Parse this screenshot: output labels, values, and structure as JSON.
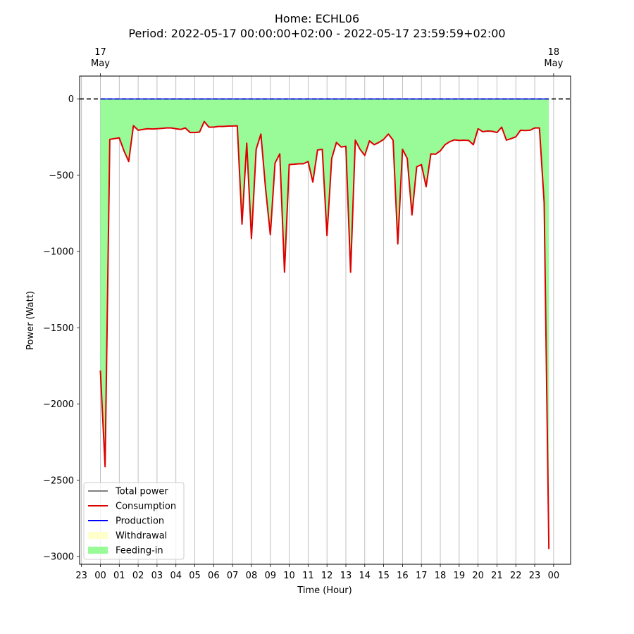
{
  "chart_data": {
    "type": "line",
    "title": "Home: ECHL06",
    "subtitle": "Period: 2022-05-17 00:00:00+02:00 - 2022-05-17 23:59:59+02:00",
    "xlabel": "Time (Hour)",
    "ylabel": "Power (Watt)",
    "ylim": [
      -3050,
      150
    ],
    "yticks": [
      0,
      -500,
      -1000,
      -1500,
      -2000,
      -2500,
      -3000
    ],
    "yticklabels": [
      "0",
      "−500",
      "−1000",
      "−1500",
      "−2000",
      "−2500",
      "−3000"
    ],
    "xlim": [
      -1.1,
      24.9
    ],
    "xticks": [
      -1,
      0,
      1,
      2,
      3,
      4,
      5,
      6,
      7,
      8,
      9,
      10,
      11,
      12,
      13,
      14,
      15,
      16,
      17,
      18,
      19,
      20,
      21,
      22,
      23,
      24
    ],
    "xticklabels": [
      "23",
      "00",
      "01",
      "02",
      "03",
      "04",
      "05",
      "06",
      "07",
      "08",
      "09",
      "10",
      "11",
      "12",
      "13",
      "14",
      "15",
      "16",
      "17",
      "18",
      "19",
      "20",
      "21",
      "22",
      "23",
      "00"
    ],
    "top_ticks": [
      {
        "x": 0,
        "day": "17",
        "month": "May"
      },
      {
        "x": 24,
        "day": "18",
        "month": "May"
      }
    ],
    "grid": "vertical",
    "legend": "lower-left",
    "zero_line": true,
    "series": [
      {
        "name": "Consumption",
        "color": "#dd0000",
        "x": [
          0,
          0.25,
          0.5,
          0.75,
          1,
          1.25,
          1.5,
          1.75,
          2,
          2.25,
          2.5,
          2.75,
          3,
          3.25,
          3.5,
          3.75,
          4,
          4.25,
          4.5,
          4.75,
          5,
          5.25,
          5.5,
          5.75,
          6,
          6.25,
          6.5,
          6.75,
          7,
          7.25,
          7.5,
          7.75,
          8,
          8.25,
          8.5,
          8.75,
          9,
          9.25,
          9.5,
          9.75,
          10,
          10.25,
          10.5,
          10.75,
          11,
          11.25,
          11.5,
          11.75,
          12,
          12.25,
          12.5,
          12.75,
          13,
          13.25,
          13.5,
          13.75,
          14,
          14.25,
          14.5,
          14.75,
          15,
          15.25,
          15.5,
          15.75,
          16,
          16.25,
          16.5,
          16.75,
          17,
          17.25,
          17.5,
          17.75,
          18,
          18.25,
          18.5,
          18.75,
          19,
          19.25,
          19.5,
          19.75,
          20,
          20.25,
          20.5,
          20.75,
          21,
          21.25,
          21.5,
          21.75,
          22,
          22.25,
          22.5,
          22.75,
          23,
          23.25,
          23.5,
          23.75
        ],
        "values": [
          -1780,
          -2410,
          -265,
          -260,
          -255,
          -340,
          -410,
          -175,
          -205,
          -200,
          -195,
          -197,
          -195,
          -193,
          -190,
          -190,
          -195,
          -200,
          -190,
          -220,
          -220,
          -217,
          -148,
          -185,
          -185,
          -180,
          -180,
          -178,
          -177,
          -176,
          -820,
          -290,
          -915,
          -330,
          -230,
          -590,
          -890,
          -420,
          -360,
          -1135,
          -430,
          -428,
          -425,
          -425,
          -410,
          -545,
          -335,
          -330,
          -895,
          -390,
          -285,
          -315,
          -310,
          -1135,
          -270,
          -330,
          -370,
          -275,
          -300,
          -285,
          -265,
          -230,
          -270,
          -950,
          -330,
          -390,
          -760,
          -445,
          -430,
          -575,
          -360,
          -362,
          -340,
          -300,
          -280,
          -268,
          -272,
          -270,
          -272,
          -300,
          -195,
          -215,
          -210,
          -212,
          -220,
          -185,
          -270,
          -260,
          -248,
          -205,
          -207,
          -205,
          -190,
          -190,
          -680,
          -2950
        ]
      },
      {
        "name": "Total power",
        "color": "#808080"
      },
      {
        "name": "Production",
        "color": "#0000ff",
        "x": [
          0,
          23.75
        ],
        "values": [
          0,
          0
        ]
      },
      {
        "name": "Withdrawal",
        "color": "#ffffcc"
      },
      {
        "name": "Feeding-in",
        "color": "#98fb98",
        "fill_to": "Consumption"
      }
    ],
    "legend_order": [
      "Total power",
      "Consumption",
      "Production",
      "Withdrawal",
      "Feeding-in"
    ]
  }
}
